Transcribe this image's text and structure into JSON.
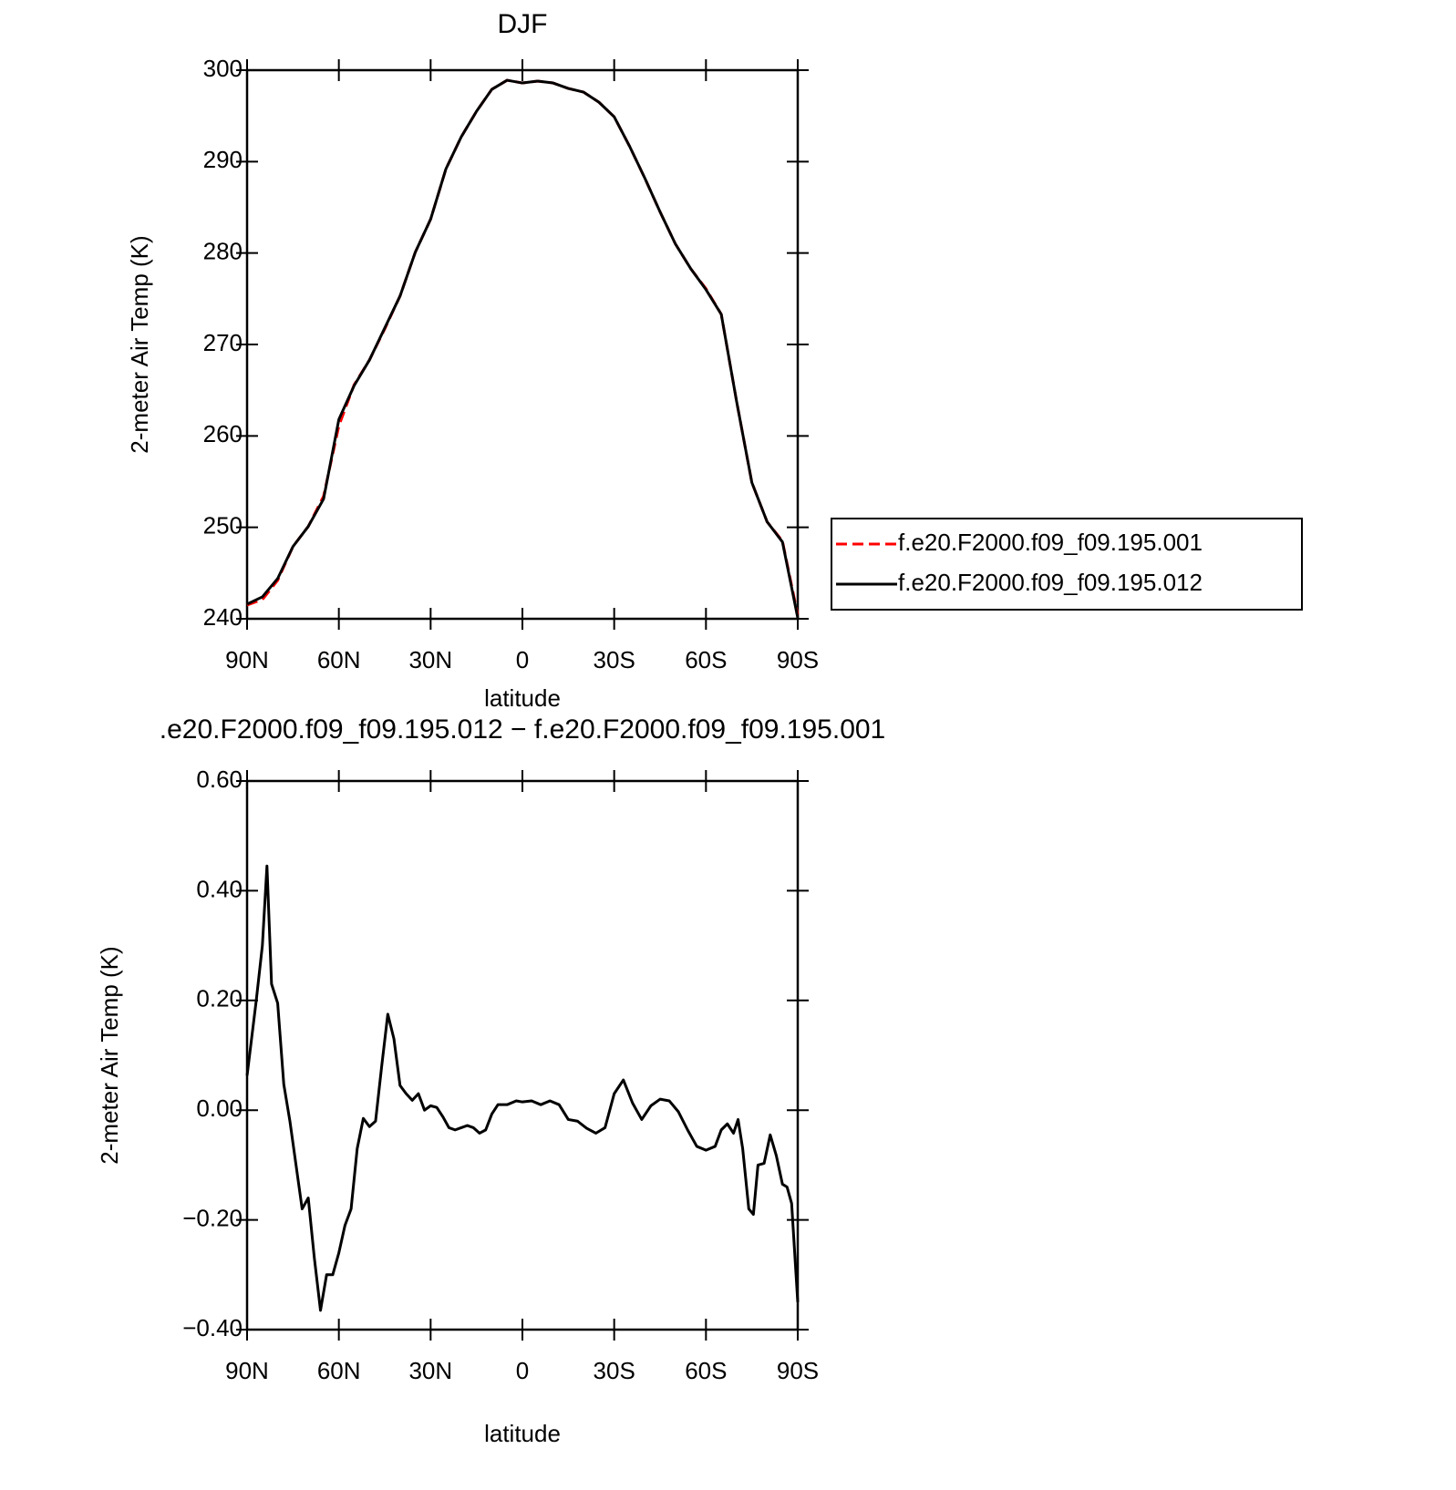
{
  "chart_data": [
    {
      "type": "line",
      "title": "DJF",
      "xlabel": "latitude",
      "ylabel": "2-meter Air Temp (K)",
      "x": [
        90,
        85,
        80,
        75,
        70,
        65,
        60,
        55,
        50,
        45,
        40,
        35,
        30,
        25,
        20,
        15,
        10,
        5,
        0,
        -5,
        -10,
        -15,
        -20,
        -25,
        -30,
        -35,
        -40,
        -45,
        -50,
        -55,
        -60,
        -65,
        -70,
        -75,
        -80,
        -85,
        -90
      ],
      "series": [
        {
          "name": "f.e20.F2000.f09_f09.195.001",
          "color": "#ff0000",
          "line_style": "dashed",
          "values": [
            241.5,
            242.1,
            244.2,
            247.9,
            250.1,
            253.4,
            261.1,
            265.6,
            268.3,
            271.7,
            275.3,
            280.1,
            283.7,
            289.2,
            292.7,
            295.5,
            297.9,
            298.9,
            298.6,
            298.8,
            298.6,
            298.0,
            297.6,
            296.5,
            294.9,
            291.7,
            288.2,
            284.5,
            281.0,
            278.3,
            276.1,
            273.3,
            263.8,
            254.9,
            250.6,
            248.5,
            240.4
          ]
        },
        {
          "name": "f.e20.F2000.f09_f09.195.012",
          "color": "#000000",
          "line_style": "solid",
          "values": [
            241.6,
            242.4,
            244.4,
            247.9,
            250.1,
            253.1,
            261.8,
            265.5,
            268.3,
            271.8,
            275.3,
            280.1,
            283.7,
            289.2,
            292.7,
            295.5,
            297.9,
            298.9,
            298.6,
            298.8,
            298.6,
            298.0,
            297.6,
            296.5,
            294.9,
            291.7,
            288.2,
            284.5,
            281.0,
            278.3,
            276.0,
            273.3,
            263.8,
            254.9,
            250.6,
            248.4,
            240.1
          ]
        }
      ],
      "xlim": [
        90,
        -90
      ],
      "xticks": [
        {
          "value": 90,
          "label": "90N"
        },
        {
          "value": 60,
          "label": "60N"
        },
        {
          "value": 30,
          "label": "30N"
        },
        0,
        {
          "value": -30,
          "label": "30S"
        },
        {
          "value": -60,
          "label": "60S"
        },
        {
          "value": -90,
          "label": "90S"
        }
      ],
      "ylim": [
        240,
        300
      ],
      "yticks": [
        240,
        250,
        260,
        270,
        280,
        290,
        300
      ],
      "legend": "right"
    },
    {
      "type": "line",
      "title": ".e20.F2000.f09_f09.195.012 − f.e20.F2000.f09_f09.195.001",
      "xlabel": "latitude",
      "ylabel": "2-meter Air Temp (K)",
      "x": [
        90,
        87,
        85,
        83.5,
        82,
        80,
        78,
        76,
        74,
        72,
        70,
        68,
        66,
        64,
        62,
        60,
        58,
        56,
        54,
        52,
        50,
        48,
        46,
        44,
        42,
        40,
        38,
        36,
        34,
        32,
        30,
        28,
        26,
        24,
        22,
        20,
        18,
        16,
        14,
        12,
        10,
        8,
        5,
        2,
        0,
        -3,
        -6,
        -9,
        -12,
        -15,
        -18,
        -21,
        -24,
        -27,
        -30,
        -33,
        -36,
        -39,
        -42,
        -45,
        -48,
        -51,
        -54,
        -57,
        -60,
        -63,
        -65,
        -67,
        -69,
        -70.5,
        -72,
        -74,
        -75.5,
        -77,
        -79,
        -81,
        -83,
        -85,
        -86.5,
        -88,
        -90
      ],
      "series": [
        {
          "name": null,
          "color": "#000000",
          "line_style": "solid",
          "values": [
            0.063,
            0.2,
            0.3,
            0.445,
            0.23,
            0.195,
            0.047,
            -0.02,
            -0.1,
            -0.18,
            -0.16,
            -0.27,
            -0.365,
            -0.3,
            -0.3,
            -0.26,
            -0.21,
            -0.18,
            -0.07,
            -0.015,
            -0.03,
            -0.02,
            0.08,
            0.175,
            0.13,
            0.045,
            0.03,
            0.018,
            0.03,
            0.0,
            0.008,
            0.005,
            -0.012,
            -0.032,
            -0.036,
            -0.032,
            -0.028,
            -0.032,
            -0.042,
            -0.036,
            -0.007,
            0.01,
            0.01,
            0.017,
            0.015,
            0.017,
            0.01,
            0.017,
            0.01,
            -0.017,
            -0.02,
            -0.033,
            -0.042,
            -0.032,
            0.03,
            0.055,
            0.013,
            -0.017,
            0.008,
            0.02,
            0.017,
            -0.003,
            -0.036,
            -0.066,
            -0.073,
            -0.066,
            -0.036,
            -0.025,
            -0.042,
            -0.017,
            -0.07,
            -0.18,
            -0.19,
            -0.1,
            -0.097,
            -0.045,
            -0.083,
            -0.135,
            -0.14,
            -0.17,
            -0.35
          ]
        }
      ],
      "xlim": [
        90,
        -90
      ],
      "xticks": [
        {
          "value": 90,
          "label": "90N"
        },
        {
          "value": 60,
          "label": "60N"
        },
        {
          "value": 30,
          "label": "30N"
        },
        0,
        {
          "value": -30,
          "label": "30S"
        },
        {
          "value": -60,
          "label": "60S"
        },
        {
          "value": -90,
          "label": "90S"
        }
      ],
      "ylim": [
        -0.4,
        0.6
      ],
      "yticks": [
        {
          "value": -0.4,
          "label": "−0.40"
        },
        {
          "value": -0.2,
          "label": "−0.20"
        },
        {
          "value": 0,
          "label": "0.00"
        },
        {
          "value": 0.2,
          "label": "0.20"
        },
        {
          "value": 0.4,
          "label": "0.40"
        },
        {
          "value": 0.6,
          "label": "0.60"
        }
      ]
    }
  ]
}
